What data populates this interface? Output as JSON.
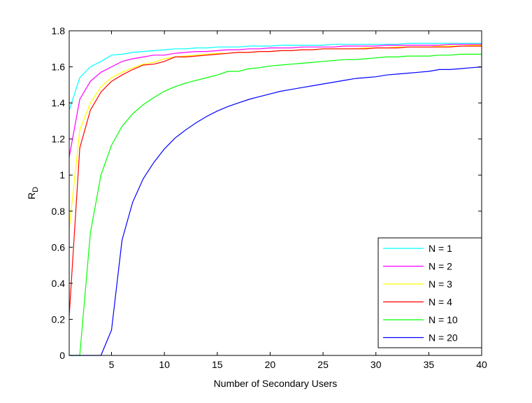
{
  "chart_data": {
    "type": "line",
    "title": "",
    "xlabel": "Number of Secondary Users",
    "ylabel": "R",
    "ylabel_subscript": "D",
    "xlim": [
      1,
      40
    ],
    "ylim": [
      0,
      1.8
    ],
    "xticks": [
      5,
      10,
      15,
      20,
      25,
      30,
      35,
      40
    ],
    "yticks": [
      0,
      0.2,
      0.4,
      0.6,
      0.8,
      1,
      1.2,
      1.4,
      1.6,
      1.8
    ],
    "ytick_labels": [
      "0",
      "0.2",
      "0.4",
      "0.6",
      "0.8",
      "1",
      "1.2",
      "1.4",
      "1.6",
      "1.8"
    ],
    "grid": false,
    "legend_position": "bottom-right",
    "x": [
      1,
      2,
      3,
      4,
      5,
      6,
      7,
      8,
      9,
      10,
      11,
      12,
      13,
      14,
      15,
      16,
      17,
      18,
      19,
      20,
      21,
      22,
      23,
      24,
      25,
      26,
      27,
      28,
      29,
      30,
      31,
      32,
      33,
      34,
      35,
      36,
      37,
      38,
      39,
      40
    ],
    "series": [
      {
        "name": "N = 1",
        "color": "#00ffff",
        "values": [
          1.36,
          1.54,
          1.6,
          1.63,
          1.665,
          1.67,
          1.68,
          1.685,
          1.69,
          1.695,
          1.7,
          1.7,
          1.705,
          1.705,
          1.71,
          1.71,
          1.71,
          1.715,
          1.715,
          1.715,
          1.72,
          1.72,
          1.72,
          1.72,
          1.72,
          1.725,
          1.725,
          1.725,
          1.725,
          1.725,
          1.725,
          1.725,
          1.73,
          1.73,
          1.73,
          1.73,
          1.73,
          1.73,
          1.73,
          1.73
        ]
      },
      {
        "name": "N = 2",
        "color": "#ff00ff",
        "values": [
          1.1,
          1.42,
          1.52,
          1.57,
          1.6,
          1.63,
          1.645,
          1.655,
          1.665,
          1.665,
          1.675,
          1.68,
          1.685,
          1.685,
          1.69,
          1.695,
          1.695,
          1.7,
          1.7,
          1.705,
          1.705,
          1.705,
          1.71,
          1.71,
          1.71,
          1.71,
          1.715,
          1.715,
          1.715,
          1.715,
          1.72,
          1.72,
          1.72,
          1.72,
          1.72,
          1.72,
          1.725,
          1.725,
          1.725,
          1.725
        ]
      },
      {
        "name": "N = 3",
        "color": "#ffff00",
        "values": [
          0.7,
          1.25,
          1.4,
          1.49,
          1.54,
          1.57,
          1.595,
          1.615,
          1.625,
          1.645,
          1.655,
          1.66,
          1.665,
          1.67,
          1.675,
          1.675,
          1.68,
          1.68,
          1.685,
          1.685,
          1.69,
          1.69,
          1.695,
          1.695,
          1.7,
          1.7,
          1.7,
          1.7,
          1.705,
          1.705,
          1.705,
          1.71,
          1.71,
          1.71,
          1.71,
          1.715,
          1.715,
          1.715,
          1.72,
          1.72
        ]
      },
      {
        "name": "N = 4",
        "color": "#ff0000",
        "values": [
          0.22,
          1.15,
          1.36,
          1.46,
          1.52,
          1.555,
          1.585,
          1.61,
          1.615,
          1.63,
          1.655,
          1.655,
          1.66,
          1.665,
          1.67,
          1.675,
          1.68,
          1.68,
          1.685,
          1.685,
          1.69,
          1.69,
          1.695,
          1.695,
          1.7,
          1.7,
          1.7,
          1.7,
          1.7,
          1.705,
          1.705,
          1.705,
          1.71,
          1.71,
          1.71,
          1.71,
          1.71,
          1.715,
          1.715,
          1.715
        ]
      },
      {
        "name": "N = 10",
        "color": "#00ff00",
        "values": [
          0,
          0,
          0.68,
          1.0,
          1.165,
          1.27,
          1.34,
          1.39,
          1.43,
          1.465,
          1.49,
          1.51,
          1.525,
          1.54,
          1.555,
          1.575,
          1.575,
          1.59,
          1.595,
          1.605,
          1.61,
          1.615,
          1.62,
          1.625,
          1.63,
          1.635,
          1.64,
          1.64,
          1.645,
          1.65,
          1.655,
          1.655,
          1.66,
          1.66,
          1.66,
          1.665,
          1.665,
          1.67,
          1.67,
          1.67
        ]
      },
      {
        "name": "N = 20",
        "color": "#0000ff",
        "values": [
          0,
          0,
          0,
          0,
          0.14,
          0.64,
          0.85,
          0.98,
          1.07,
          1.145,
          1.205,
          1.25,
          1.29,
          1.325,
          1.355,
          1.38,
          1.4,
          1.42,
          1.435,
          1.45,
          1.465,
          1.475,
          1.485,
          1.495,
          1.505,
          1.515,
          1.525,
          1.535,
          1.54,
          1.545,
          1.555,
          1.56,
          1.565,
          1.57,
          1.575,
          1.585,
          1.585,
          1.59,
          1.595,
          1.6
        ]
      }
    ]
  }
}
